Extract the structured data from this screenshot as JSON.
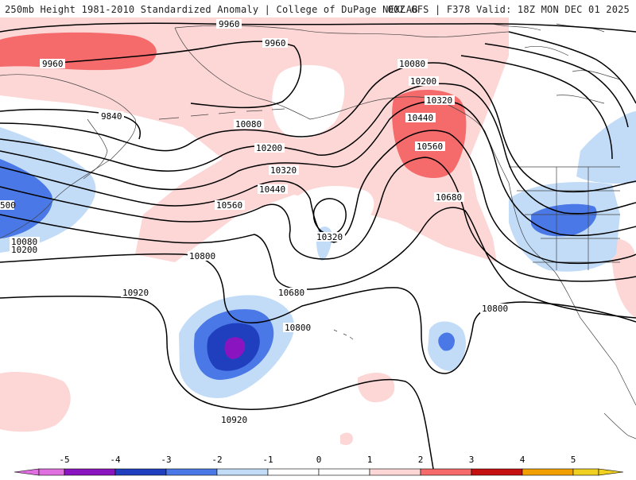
{
  "title": {
    "left": "250mb Height 1981-2010 Standardized Anomaly | College of DuPage NEXLAB",
    "right": "00Z GFS | F378 Valid: 18Z MON DEC 01 2025"
  },
  "colors": {
    "neg5": "#e070e0",
    "neg4": "#8a14c0",
    "neg3": "#1f3fbf",
    "neg2": "#4a78e6",
    "neg1": "#c2dcf8",
    "zero": "#ffffff",
    "pos1": "#fdd6d6",
    "pos2": "#f56a6a",
    "pos3": "#c41010",
    "pos4": "#f2a000",
    "land_line": "#444444",
    "contour": "#000000"
  },
  "contour_labels": {
    "c9960a": "9960",
    "c9960b": "9960",
    "c9960c": "9960",
    "c9840": "9840",
    "c10080a": "10080",
    "c10080b": "10080",
    "c10080c": "10080",
    "c10200a": "10200",
    "c10200b": "10200",
    "c10200c": "10200",
    "c10320a": "10320",
    "c10320b": "10320",
    "c10320c": "10320",
    "c10440a": "10440",
    "c10440b": "10440",
    "c10560a": "10560",
    "c10560b": "10560",
    "c10680a": "10680",
    "c10680b": "10680",
    "c10800a": "10800",
    "c10800b": "10800",
    "c10800c": "10800",
    "c10920a": "10920",
    "c10920b": "10920",
    "c500": "500"
  },
  "legend": {
    "ticks": [
      "-5",
      "-4",
      "-3",
      "-2",
      "-1",
      "0",
      "1",
      "2",
      "3",
      "4",
      "5"
    ],
    "bins": [
      {
        "name": "neg5",
        "color": "#e070e0"
      },
      {
        "name": "neg45",
        "color": "#8a14c0"
      },
      {
        "name": "neg34",
        "color": "#1f3fbf"
      },
      {
        "name": "neg23",
        "color": "#4a78e6"
      },
      {
        "name": "neg12",
        "color": "#c2dcf8"
      },
      {
        "name": "neg01",
        "color": "#ffffff"
      },
      {
        "name": "pos01",
        "color": "#ffffff"
      },
      {
        "name": "pos12",
        "color": "#fdd6d6"
      },
      {
        "name": "pos23",
        "color": "#f56a6a"
      },
      {
        "name": "pos34",
        "color": "#c41010"
      },
      {
        "name": "pos45",
        "color": "#f2a000"
      },
      {
        "name": "pos5",
        "color": "#f0d020"
      }
    ]
  }
}
